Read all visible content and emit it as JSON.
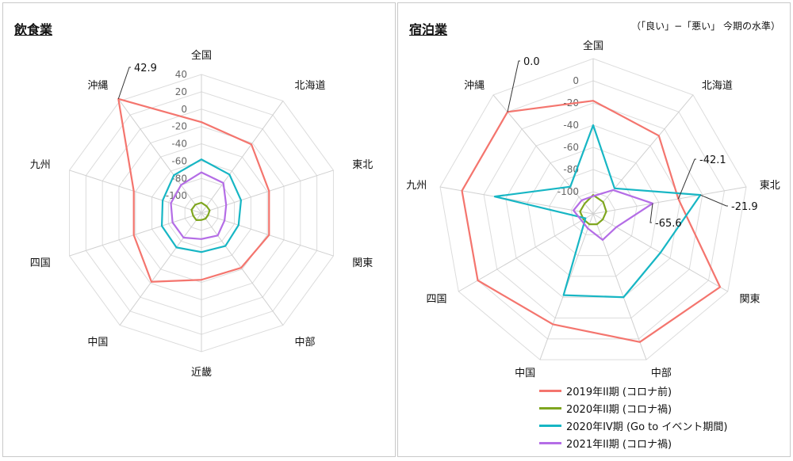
{
  "note": "（「良い」−「悪い」 今期の水準）",
  "legend": [
    {
      "name": "2019年II期 (コロナ前)",
      "color": "#f4756e"
    },
    {
      "name": "2020年II期 (コロナ禍)",
      "color": "#7fa61f"
    },
    {
      "name": "2020年IV期 (Go to イベント期間)",
      "color": "#17b6c4"
    },
    {
      "name": "2021年II期 (コロナ禍)",
      "color": "#b46de6"
    }
  ],
  "chart_data": [
    {
      "type": "radar",
      "title": "飲食業",
      "axes": [
        "全国",
        "北海道",
        "東北",
        "関東",
        "中部",
        "近畿",
        "中国",
        "四国",
        "九州",
        "沖縄"
      ],
      "rlim": [
        -120,
        40
      ],
      "ticks": [
        "40",
        "20",
        "0",
        "-20",
        "-40",
        "-60",
        "-80",
        "-100"
      ],
      "tick_values": [
        40,
        20,
        0,
        -20,
        -40,
        -60,
        -80,
        -100
      ],
      "series": [
        {
          "name": "2019年II期 (コロナ前)",
          "values": [
            -15,
            -22,
            -38,
            -38,
            -42,
            -43,
            -22,
            -38,
            -38,
            42.9
          ]
        },
        {
          "name": "2020年II期 (コロナ禍)",
          "values": [
            -108,
            -110,
            -110,
            -112,
            -112,
            -112,
            -110,
            -110,
            -108,
            -108
          ]
        },
        {
          "name": "2020年IV期 (Go to イベント期間)",
          "values": [
            -58,
            -65,
            -72,
            -75,
            -73,
            -75,
            -71,
            -72,
            -73,
            -66
          ]
        },
        {
          "name": "2021年II期 (コロナ禍)",
          "values": [
            -73,
            -77,
            -90,
            -92,
            -88,
            -90,
            -85,
            -85,
            -83,
            -80
          ]
        }
      ],
      "annotations": [
        {
          "axis": "沖縄",
          "label": "42.9"
        }
      ]
    },
    {
      "type": "radar",
      "title": "宿泊業",
      "axes": [
        "全国",
        "北海道",
        "東北",
        "関東",
        "中部",
        "中国",
        "四国",
        "九州",
        "沖縄"
      ],
      "rlim": [
        -120,
        20
      ],
      "ticks": [
        "0",
        "-20",
        "-40",
        "-60",
        "-80",
        "-100"
      ],
      "tick_values": [
        0,
        -20,
        -40,
        -60,
        -80,
        -100
      ],
      "series": [
        {
          "name": "2019年II期 (コロナ前)",
          "values": [
            -18,
            -28,
            -42.1,
            12,
            3,
            -14,
            0,
            0,
            0.0
          ]
        },
        {
          "name": "2020年II期 (コロナ禍)",
          "values": [
            -103,
            -106,
            -108,
            -110,
            -110,
            -110,
            -110,
            -108,
            -108
          ]
        },
        {
          "name": "2020年IV期 (Go to イベント期間)",
          "values": [
            -40,
            -90,
            -21.9,
            -50,
            -40,
            -42,
            -112,
            -30,
            -88
          ]
        },
        {
          "name": "2021年II期 (コロナ禍)",
          "values": [
            -104,
            -92,
            -65.6,
            -96,
            -95,
            -106,
            -108,
            -102,
            -104
          ]
        }
      ],
      "annotations": [
        {
          "axis": "沖縄",
          "label": "0.0"
        },
        {
          "axis": "東北",
          "label": "-42.1"
        },
        {
          "axis": "東北",
          "label": "-21.9"
        },
        {
          "axis": "東北",
          "label": "-65.6"
        }
      ]
    }
  ]
}
